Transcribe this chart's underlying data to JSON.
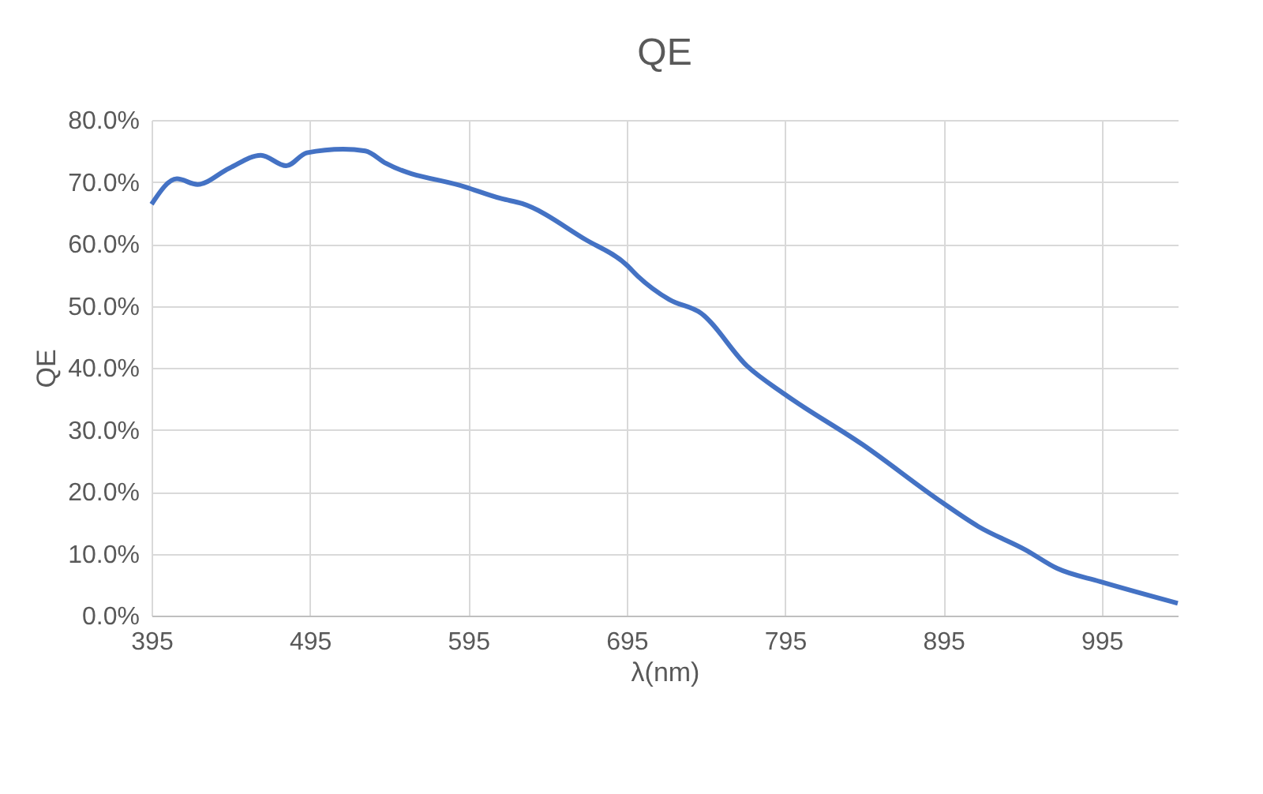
{
  "chart_data": {
    "type": "line",
    "title": "QE",
    "xlabel": "λ(nm)",
    "ylabel": "QE",
    "x": [
      395,
      411,
      424,
      444,
      464,
      480,
      493,
      516,
      530,
      543,
      593,
      616,
      629,
      669,
      695,
      702,
      722,
      742,
      771,
      795,
      844,
      894,
      917,
      947,
      967,
      994,
      1043
    ],
    "series": [
      {
        "color": "#4472c4",
        "values": [
          66.4,
          70.5,
          69.6,
          72.2,
          74.3,
          72.6,
          74.7,
          75.3,
          75.0,
          73.0,
          69.2,
          67.3,
          66.5,
          60.7,
          56.6,
          54.8,
          51.0,
          48.8,
          40.3,
          35.7,
          27.6,
          18.3,
          14.4,
          10.6,
          7.6,
          5.5,
          2.0
        ]
      }
    ],
    "xlim": [
      395,
      1043
    ],
    "xticks": [
      395,
      495,
      595,
      695,
      795,
      895,
      995
    ],
    "ylim": [
      0,
      80
    ],
    "yticks": [
      {
        "value": 0,
        "label": "0.0%"
      },
      {
        "value": 10,
        "label": "10.0%"
      },
      {
        "value": 20,
        "label": "20.0%"
      },
      {
        "value": 30,
        "label": "30.0%"
      },
      {
        "value": 40,
        "label": "40.0%"
      },
      {
        "value": 50,
        "label": "50.0%"
      },
      {
        "value": 60,
        "label": "60.0%"
      },
      {
        "value": 70,
        "label": "70.0%"
      },
      {
        "value": 80,
        "label": "80.0%"
      }
    ],
    "grid": true,
    "legend": false,
    "marker": "none",
    "line_style": "solid"
  }
}
